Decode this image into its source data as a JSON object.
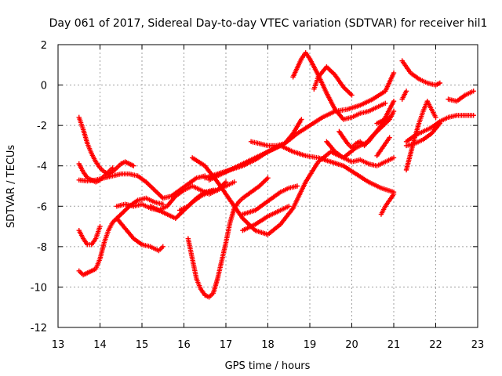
{
  "chart_data": {
    "type": "scatter",
    "title": "Day 061 of 2017, Sidereal Day-to-day VTEC variation (SDTVAR) for receiver hil1",
    "xlabel": "GPS time / hours",
    "ylabel": "SDTVAR / TECUs",
    "xlim": [
      13,
      23
    ],
    "ylim": [
      -12,
      2
    ],
    "xticks": [
      "13",
      "14",
      "15",
      "16",
      "17",
      "18",
      "19",
      "20",
      "21",
      "22",
      "23"
    ],
    "yticks": [
      "2",
      "0",
      "-2",
      "-4",
      "-6",
      "-8",
      "-10",
      "-12"
    ],
    "grid": true,
    "marker": "+",
    "color": "#ff0000",
    "series": [
      {
        "x": [
          13.5,
          13.6,
          13.7,
          13.8,
          13.9,
          14.0,
          14.1,
          14.2,
          14.3,
          14.4,
          14.5,
          14.6,
          14.7,
          14.8
        ],
        "y": [
          -1.6,
          -2.2,
          -2.9,
          -3.4,
          -3.8,
          -4.1,
          -4.3,
          -4.4,
          -4.3,
          -4.1,
          -3.9,
          -3.8,
          -3.9,
          -4.0
        ]
      },
      {
        "x": [
          13.5,
          13.6,
          13.7,
          13.8,
          13.9,
          14.0,
          14.1,
          14.2,
          14.3
        ],
        "y": [
          -3.9,
          -4.3,
          -4.6,
          -4.7,
          -4.8,
          -4.7,
          -4.5,
          -4.3,
          -4.1
        ]
      },
      {
        "x": [
          13.5,
          13.7,
          13.9,
          14.1,
          14.3,
          14.5,
          14.7,
          14.9,
          15.1,
          15.3,
          15.5,
          15.7,
          15.9,
          16.1,
          16.3,
          16.5
        ],
        "y": [
          -4.7,
          -4.75,
          -4.7,
          -4.6,
          -4.5,
          -4.4,
          -4.4,
          -4.5,
          -4.8,
          -5.2,
          -5.6,
          -5.5,
          -5.2,
          -4.9,
          -4.6,
          -4.5
        ]
      },
      {
        "x": [
          13.5,
          13.6,
          13.7,
          13.8,
          13.9,
          14.0
        ],
        "y": [
          -7.2,
          -7.6,
          -7.9,
          -7.9,
          -7.6,
          -7.0
        ]
      },
      {
        "x": [
          13.5,
          13.6,
          13.7,
          13.8,
          13.9,
          14.0,
          14.1,
          14.2,
          14.3,
          14.5,
          14.7,
          14.9,
          15.1,
          15.3,
          15.5
        ],
        "y": [
          -9.2,
          -9.4,
          -9.3,
          -9.2,
          -9.1,
          -8.6,
          -7.8,
          -7.2,
          -6.8,
          -6.4,
          -6.0,
          -5.7,
          -5.6,
          -5.8,
          -5.9
        ]
      },
      {
        "x": [
          14.4,
          14.6,
          14.8,
          15.0,
          15.2,
          15.4,
          15.5
        ],
        "y": [
          -6.6,
          -7.1,
          -7.6,
          -7.9,
          -8.0,
          -8.2,
          -8.0
        ]
      },
      {
        "x": [
          14.4,
          14.6,
          14.8,
          15.0,
          15.2,
          15.4,
          15.6,
          15.8,
          16.0,
          16.2,
          16.4,
          16.6,
          16.8,
          17.0
        ],
        "y": [
          -6.0,
          -5.9,
          -6.0,
          -5.9,
          -6.1,
          -6.2,
          -6.0,
          -5.5,
          -5.2,
          -5.0,
          -5.2,
          -5.4,
          -5.2,
          -4.8
        ]
      },
      {
        "x": [
          15.2,
          15.5,
          15.8,
          16.0,
          16.2,
          16.4,
          16.6,
          16.8,
          17.0,
          17.2
        ],
        "y": [
          -6.0,
          -6.3,
          -6.6,
          -6.2,
          -5.8,
          -5.5,
          -5.3,
          -5.2,
          -5.0,
          -4.8
        ]
      },
      {
        "x": [
          15.9,
          16.1,
          16.3,
          16.5,
          16.7,
          16.8
        ],
        "y": [
          -6.2,
          -6.0,
          -5.6,
          -5.3,
          -5.2,
          -5.2
        ]
      },
      {
        "x": [
          16.1,
          16.2,
          16.3,
          16.4,
          16.5,
          16.6,
          16.7,
          16.8,
          16.9,
          17.0,
          17.1,
          17.2,
          17.3,
          17.4,
          17.6,
          17.8,
          18.0
        ],
        "y": [
          -7.6,
          -8.6,
          -9.6,
          -10.1,
          -10.4,
          -10.5,
          -10.3,
          -9.6,
          -8.7,
          -7.8,
          -6.8,
          -6.1,
          -5.8,
          -5.6,
          -5.3,
          -5.0,
          -4.6
        ]
      },
      {
        "x": [
          16.2,
          16.5,
          16.8,
          17.1,
          17.4,
          17.7,
          18.0,
          18.3,
          18.6,
          18.9,
          19.2,
          19.5,
          19.8,
          20.1,
          20.4,
          20.7,
          21.0
        ],
        "y": [
          -3.6,
          -4.0,
          -4.8,
          -5.7,
          -6.6,
          -7.2,
          -7.4,
          -6.9,
          -6.1,
          -4.8,
          -3.8,
          -3.3,
          -3.6,
          -3.1,
          -2.8,
          -2.0,
          -0.8
        ]
      },
      {
        "x": [
          16.6,
          16.9,
          17.2,
          17.5,
          17.8,
          18.1,
          18.4,
          18.7,
          19.0,
          19.3,
          19.6,
          19.9,
          20.2,
          20.5,
          20.8,
          21.0
        ],
        "y": [
          -4.7,
          -4.4,
          -4.1,
          -3.8,
          -3.5,
          -3.2,
          -2.9,
          -2.4,
          -2.0,
          -1.6,
          -1.3,
          -1.2,
          -1.0,
          -0.7,
          -0.3,
          0.6
        ]
      },
      {
        "x": [
          16.5,
          16.8,
          17.1,
          17.4,
          17.7,
          18.0,
          18.3,
          18.6,
          18.9,
          19.2,
          19.5,
          19.8,
          20.1,
          20.4,
          20.7,
          21.0
        ],
        "y": [
          -4.6,
          -4.4,
          -4.2,
          -4.0,
          -3.7,
          -3.3,
          -3.0,
          -3.3,
          -3.5,
          -3.6,
          -3.8,
          -4.0,
          -4.4,
          -4.8,
          -5.1,
          -5.3
        ]
      },
      {
        "x": [
          17.4,
          17.7,
          17.9,
          18.1,
          18.3,
          18.5,
          18.7
        ],
        "y": [
          -6.4,
          -6.2,
          -5.9,
          -5.6,
          -5.3,
          -5.1,
          -5.0
        ]
      },
      {
        "x": [
          17.6,
          17.8,
          18.0,
          18.2,
          18.4,
          18.6,
          18.8
        ],
        "y": [
          -2.8,
          -2.9,
          -3.0,
          -3.0,
          -2.9,
          -2.4,
          -1.7
        ]
      },
      {
        "x": [
          17.4,
          17.7,
          18.0,
          18.3,
          18.5
        ],
        "y": [
          -7.2,
          -6.9,
          -6.5,
          -6.2,
          -6.0
        ]
      },
      {
        "x": [
          18.6,
          18.8,
          18.9,
          19.0,
          19.2,
          19.4,
          19.6,
          19.8,
          20.0,
          20.2,
          20.4,
          20.6,
          20.8
        ],
        "y": [
          0.4,
          1.3,
          1.6,
          1.3,
          0.5,
          -0.4,
          -1.2,
          -1.7,
          -1.6,
          -1.4,
          -1.3,
          -1.1,
          -0.9
        ]
      },
      {
        "x": [
          19.1,
          19.2,
          19.4,
          19.6,
          19.8,
          20.0
        ],
        "y": [
          -0.2,
          0.4,
          0.9,
          0.5,
          -0.1,
          -0.5
        ]
      },
      {
        "x": [
          19.4,
          19.6,
          19.8,
          20.0,
          20.2,
          20.4,
          20.6,
          20.8,
          21.0
        ],
        "y": [
          -2.8,
          -3.3,
          -3.6,
          -3.8,
          -3.7,
          -3.9,
          -4.0,
          -3.8,
          -3.6
        ]
      },
      {
        "x": [
          19.7,
          19.9,
          20.0,
          20.1,
          20.2,
          20.3,
          20.5,
          20.7,
          20.9,
          21.0
        ],
        "y": [
          -2.3,
          -2.9,
          -3.1,
          -2.9,
          -2.8,
          -3.0,
          -2.5,
          -2.1,
          -1.7,
          -1.3
        ]
      },
      {
        "x": [
          20.6,
          20.7,
          20.8,
          20.9
        ],
        "y": [
          -1.9,
          -1.8,
          -1.7,
          -1.6
        ]
      },
      {
        "x": [
          20.7,
          20.8,
          20.9,
          21.0
        ],
        "y": [
          -6.4,
          -6.0,
          -5.7,
          -5.4
        ]
      },
      {
        "x": [
          20.6,
          20.7,
          20.8,
          20.9
        ],
        "y": [
          -3.5,
          -3.2,
          -2.9,
          -2.6
        ]
      },
      {
        "x": [
          21.2,
          21.3,
          21.4,
          21.6,
          21.8,
          22.0,
          22.1
        ],
        "y": [
          1.2,
          0.9,
          0.6,
          0.3,
          0.1,
          0.0,
          0.1
        ]
      },
      {
        "x": [
          21.3,
          21.4,
          21.5,
          21.6,
          21.7,
          21.8,
          21.9,
          22.0
        ],
        "y": [
          -4.2,
          -3.4,
          -2.6,
          -1.9,
          -1.3,
          -0.8,
          -1.2,
          -1.6
        ]
      },
      {
        "x": [
          21.3,
          21.5,
          21.7,
          21.9,
          22.1,
          22.3,
          22.5,
          22.7,
          22.9
        ],
        "y": [
          -2.8,
          -2.5,
          -2.3,
          -2.1,
          -1.8,
          -1.6,
          -1.5,
          -1.5,
          -1.5
        ]
      },
      {
        "x": [
          21.3,
          21.5,
          21.7,
          21.9,
          22.1
        ],
        "y": [
          -3.0,
          -2.9,
          -2.7,
          -2.4,
          -1.9
        ]
      },
      {
        "x": [
          22.3,
          22.5,
          22.7,
          22.9
        ],
        "y": [
          -0.7,
          -0.8,
          -0.5,
          -0.3
        ]
      },
      {
        "x": [
          21.2,
          21.3
        ],
        "y": [
          -0.7,
          -0.3
        ]
      }
    ]
  }
}
